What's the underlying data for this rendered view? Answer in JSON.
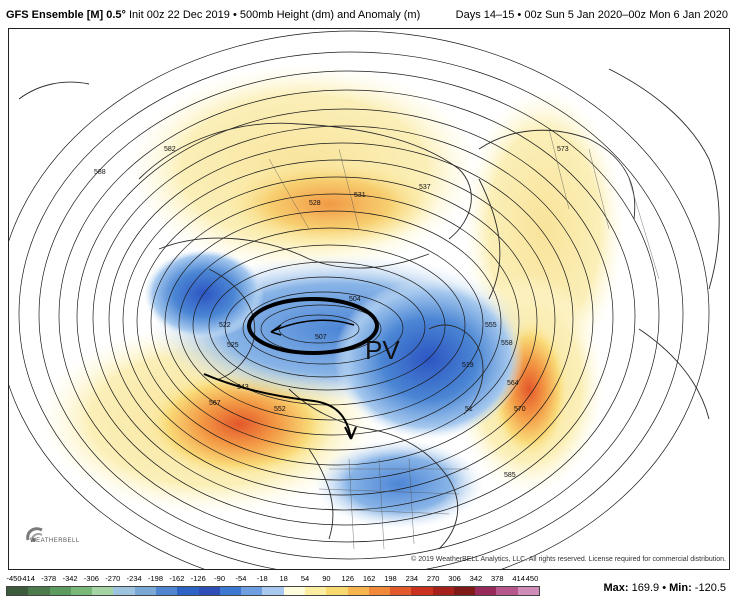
{
  "header": {
    "model": "GFS Ensemble [M] 0.5°",
    "init": "Init 00z 22 Dec 2019",
    "separator": "•",
    "product": "500mb Height (dm) and Anomaly (m)",
    "valid": "Days 14–15 • 00z Sun 5 Jan 2020–00z Mon 6 Jan 2020"
  },
  "annotations": {
    "pv_label": "PV"
  },
  "contour_labels": [
    {
      "text": "582",
      "series": "height"
    },
    {
      "text": "588",
      "series": "height"
    },
    {
      "text": "528",
      "series": "height"
    },
    {
      "text": "531",
      "series": "height"
    },
    {
      "text": "537",
      "series": "height"
    },
    {
      "text": "573",
      "series": "height"
    },
    {
      "text": "522",
      "series": "height"
    },
    {
      "text": "525",
      "series": "height"
    },
    {
      "text": "504",
      "series": "height"
    },
    {
      "text": "507",
      "series": "height"
    },
    {
      "text": "543",
      "series": "height"
    },
    {
      "text": "552",
      "series": "height"
    },
    {
      "text": "567",
      "series": "height"
    },
    {
      "text": "555",
      "series": "height"
    },
    {
      "text": "558",
      "series": "height"
    },
    {
      "text": "564",
      "series": "height"
    },
    {
      "text": "570",
      "series": "height"
    },
    {
      "text": "585",
      "series": "height"
    },
    {
      "text": "519",
      "series": "height"
    },
    {
      "text": "51",
      "series": "height"
    }
  ],
  "footer": {
    "copyright": "© 2019 WeatherBELL Analytics, LLC. All rights reserved. License required for commercial distribution.",
    "logo_text": "WEATHERBELL",
    "max_label": "Max:",
    "max_value": "169.9",
    "min_label": "Min:",
    "min_value": "-120.5",
    "bullet": "•"
  },
  "colorbar": {
    "ticks": [
      "-450",
      "-414",
      "-378",
      "-342",
      "-306",
      "-270",
      "-234",
      "-198",
      "-162",
      "-126",
      "-90",
      "-54",
      "-18",
      "18",
      "54",
      "90",
      "126",
      "162",
      "198",
      "234",
      "270",
      "306",
      "342",
      "378",
      "414",
      "450"
    ],
    "colors": [
      "#3c5a3c",
      "#4c7a4c",
      "#5d9a5d",
      "#7ab87a",
      "#a4d4a4",
      "#9ec3df",
      "#7aa9d6",
      "#4f86cf",
      "#2d63c4",
      "#2f4fb8",
      "#3c78d2",
      "#6d9fe0",
      "#a8c9ef",
      "#fffbdc",
      "#fbeea0",
      "#f8d970",
      "#f6b54e",
      "#f08a3a",
      "#e25a2c",
      "#c8321f",
      "#a6211b",
      "#7f1a18",
      "#962a5a",
      "#b5578b",
      "#cf8cb8"
    ]
  },
  "colors": {
    "frame": "#222222",
    "contour": "#1a1a1a",
    "coast": "#2a2a2a"
  }
}
